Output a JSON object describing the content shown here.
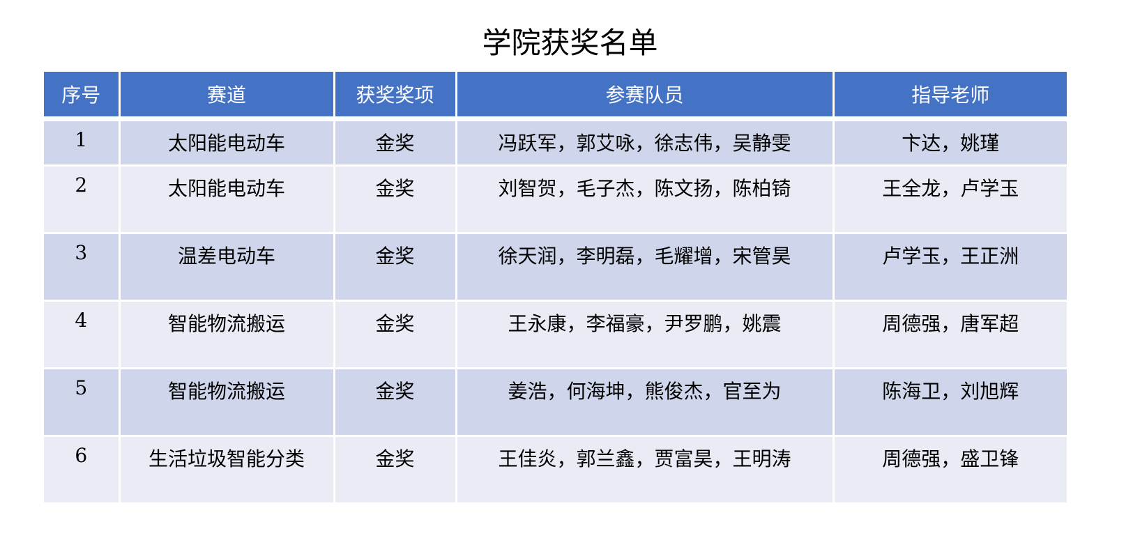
{
  "title": "学院获奖名单",
  "colors": {
    "header": "#4472C4",
    "row_odd": "#CFD5EA",
    "row_even": "#E9EBF5"
  },
  "table": {
    "headers": [
      "序号",
      "赛道",
      "获奖奖项",
      "参赛队员",
      "指导老师"
    ],
    "rows": [
      [
        "1",
        "太阳能电动车",
        "金奖",
        "冯跃军，郭艾咏，徐志伟，吴静雯",
        "卞达，姚瑾"
      ],
      [
        "2",
        "太阳能电动车",
        "金奖",
        "刘智贺，毛子杰，陈文扬，陈柏锜",
        "王全龙，卢学玉"
      ],
      [
        "3",
        "温差电动车",
        "金奖",
        "徐天润，李明磊，毛耀增，宋管昊",
        "卢学玉，王正洲"
      ],
      [
        "4",
        "智能物流搬运",
        "金奖",
        "王永康，李福豪，尹罗鹏，姚震",
        "周德强，唐军超"
      ],
      [
        "5",
        "智能物流搬运",
        "金奖",
        "姜浩，何海坤，熊俊杰，官至为",
        "陈海卫，刘旭辉"
      ],
      [
        "6",
        "生活垃圾智能分类",
        "金奖",
        "王佳炎，郭兰鑫，贾富昊，王明涛",
        "周德强，盛卫锋"
      ]
    ]
  }
}
